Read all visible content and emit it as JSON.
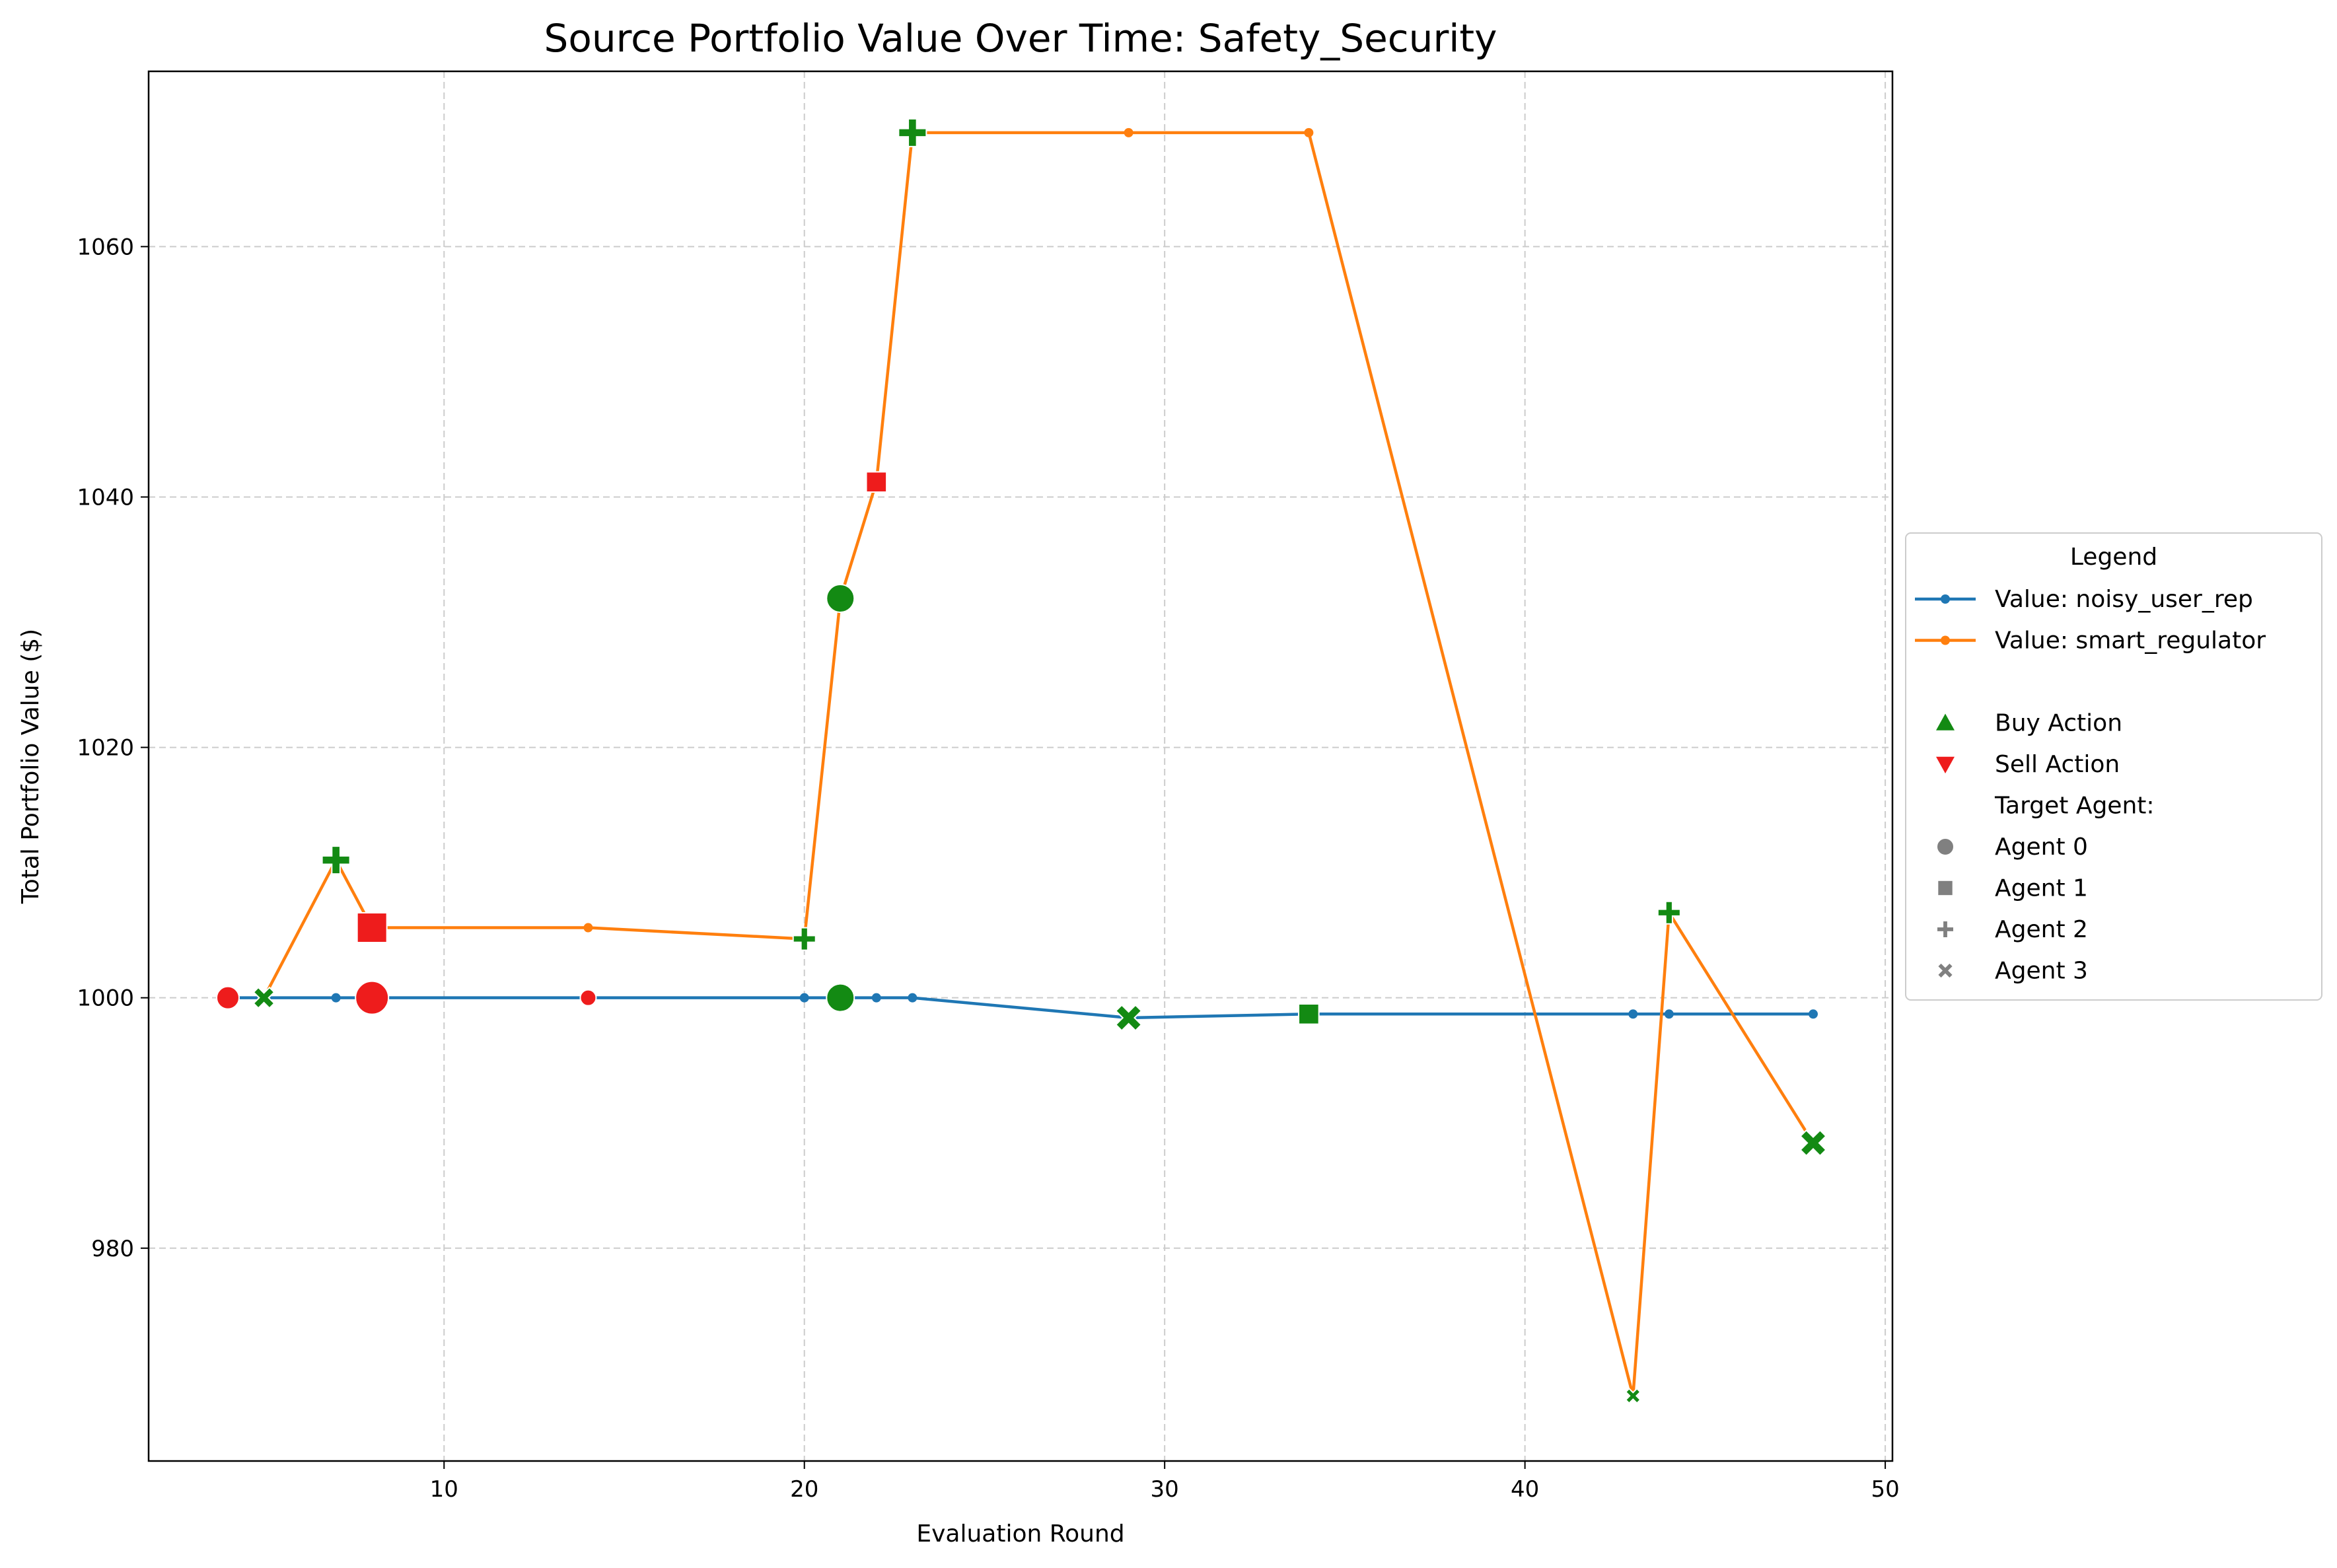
{
  "chart_data": {
    "type": "line",
    "title": "Source Portfolio Value Over Time: Safety_Security",
    "xlabel": "Evaluation Round",
    "ylabel": "Total Portfolio Value ($)",
    "xlim": [
      1.8,
      50.2
    ],
    "ylim": [
      963,
      1074
    ],
    "xticks": [
      10,
      20,
      30,
      40,
      50
    ],
    "yticks": [
      980,
      1000,
      1020,
      1040,
      1060
    ],
    "grid": true,
    "legend_position": "right, outside plot",
    "series": [
      {
        "name": "Value: noisy_user_rep",
        "color": "#1f77b4",
        "x": [
          4,
          5,
          7,
          8,
          14,
          20,
          21,
          22,
          23,
          29,
          34,
          43,
          44,
          48
        ],
        "y": [
          1000,
          1000,
          1000,
          1000,
          1000,
          1000,
          1000,
          1000,
          1000,
          998.4,
          998.7,
          998.7,
          998.7,
          998.7
        ]
      },
      {
        "name": "Value: smart_regulator",
        "color": "#ff7f0e",
        "x": [
          5,
          7,
          8,
          14,
          20,
          21,
          22,
          23,
          29,
          34,
          43,
          44,
          48
        ],
        "y": [
          1000,
          1011,
          1005.6,
          1005.6,
          1004.7,
          1031.9,
          1041.2,
          1069.1,
          1069.1,
          1069.1,
          968.2,
          1006.8,
          988.4
        ]
      }
    ],
    "actions": [
      {
        "x": 4,
        "y": 1000,
        "action": "sell",
        "target": "Agent 0",
        "size": "medium"
      },
      {
        "x": 5,
        "y": 1000,
        "action": "buy",
        "target": "Agent 3",
        "size": "medium"
      },
      {
        "x": 7,
        "y": 1011,
        "action": "buy",
        "target": "Agent 2",
        "size": "large"
      },
      {
        "x": 8,
        "y": 1005.6,
        "action": "sell",
        "target": "Agent 1",
        "size": "xlarge"
      },
      {
        "x": 8,
        "y": 1000,
        "action": "sell",
        "target": "Agent 0",
        "size": "xlarge"
      },
      {
        "x": 14,
        "y": 1000,
        "action": "sell",
        "target": "Agent 0",
        "size": "small"
      },
      {
        "x": 20,
        "y": 1004.7,
        "action": "buy",
        "target": "Agent 2",
        "size": "medium"
      },
      {
        "x": 21,
        "y": 1031.9,
        "action": "buy",
        "target": "Agent 0",
        "size": "large"
      },
      {
        "x": 21,
        "y": 1000,
        "action": "buy",
        "target": "Agent 0",
        "size": "large"
      },
      {
        "x": 22,
        "y": 1041.2,
        "action": "sell",
        "target": "Agent 1",
        "size": "medium"
      },
      {
        "x": 23,
        "y": 1069.1,
        "action": "buy",
        "target": "Agent 2",
        "size": "large"
      },
      {
        "x": 29,
        "y": 998.4,
        "action": "buy",
        "target": "Agent 3",
        "size": "large"
      },
      {
        "x": 34,
        "y": 998.7,
        "action": "buy",
        "target": "Agent 1",
        "size": "medium"
      },
      {
        "x": 43,
        "y": 968.2,
        "action": "buy",
        "target": "Agent 3",
        "size": "small"
      },
      {
        "x": 44,
        "y": 1006.8,
        "action": "buy",
        "target": "Agent 2",
        "size": "medium"
      },
      {
        "x": 48,
        "y": 988.4,
        "action": "buy",
        "target": "Agent 3",
        "size": "large"
      }
    ],
    "action_colors": {
      "buy": "#138a13",
      "sell": "#ee1c1c"
    },
    "legend": {
      "title": "Legend",
      "entries": [
        {
          "label": "Value: noisy_user_rep",
          "kind": "line",
          "color": "#1f77b4"
        },
        {
          "label": "Value: smart_regulator",
          "kind": "line",
          "color": "#ff7f0e"
        },
        {
          "label": "",
          "kind": "blank"
        },
        {
          "label": "Buy Action",
          "kind": "triangle-up",
          "color": "#138a13"
        },
        {
          "label": "Sell Action",
          "kind": "triangle-down",
          "color": "#ee1c1c"
        },
        {
          "label": "Target Agent:",
          "kind": "header"
        },
        {
          "label": "Agent 0",
          "kind": "circle",
          "color": "#808080"
        },
        {
          "label": "Agent 1",
          "kind": "square",
          "color": "#808080"
        },
        {
          "label": "Agent 2",
          "kind": "plus",
          "color": "#808080"
        },
        {
          "label": "Agent 3",
          "kind": "x",
          "color": "#808080"
        }
      ]
    }
  }
}
